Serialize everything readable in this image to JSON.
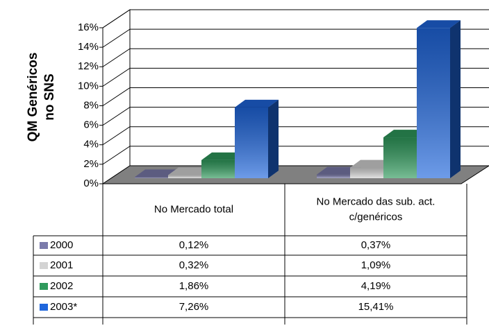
{
  "chart_data": {
    "type": "bar3d",
    "ylabel": [
      "QM Genéricos",
      "no SNS"
    ],
    "categories": [
      [
        "No Mercado total"
      ],
      [
        "No Mercado das sub. act.",
        "c/genéricos"
      ]
    ],
    "series": [
      {
        "name": "2000",
        "color": "#7b7bab",
        "values": [
          0.12,
          0.37
        ],
        "value_labels": [
          "0,12%",
          "0,37%"
        ]
      },
      {
        "name": "2001",
        "color": "#d4d4d4",
        "values": [
          0.32,
          1.09
        ],
        "value_labels": [
          "0,32%",
          "1,09%"
        ]
      },
      {
        "name": "2002",
        "color": "#2f9a5c",
        "values": [
          1.86,
          4.19
        ],
        "value_labels": [
          "1,86%",
          "4,19%"
        ]
      },
      {
        "name": "2003*",
        "color": "#1f66dc",
        "values": [
          7.26,
          15.41
        ],
        "value_labels": [
          "7,26%",
          "15,41%"
        ]
      }
    ],
    "ylim": [
      0,
      16
    ],
    "yticks": [
      {
        "value": 0,
        "label": "0%"
      },
      {
        "value": 2,
        "label": "2%"
      },
      {
        "value": 4,
        "label": "4%"
      },
      {
        "value": 6,
        "label": "6%"
      },
      {
        "value": 8,
        "label": "8%"
      },
      {
        "value": 10,
        "label": "10%"
      },
      {
        "value": 12,
        "label": "12%"
      },
      {
        "value": 14,
        "label": "14%"
      },
      {
        "value": 16,
        "label": "16%"
      }
    ],
    "grid": true
  }
}
